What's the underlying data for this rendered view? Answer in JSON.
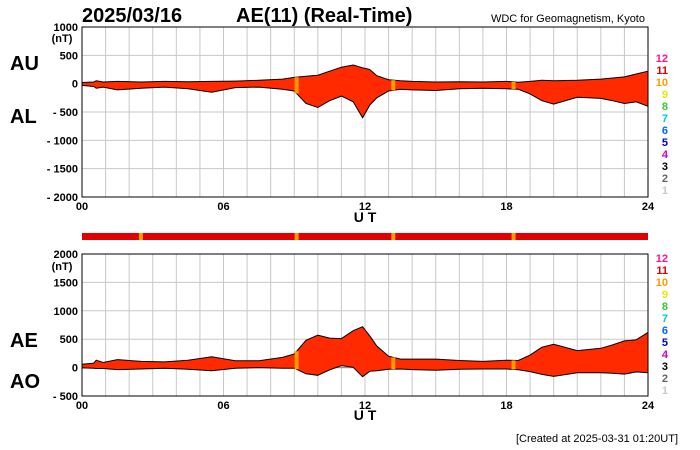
{
  "header": {
    "date": "2025/03/16",
    "title": "AE(11) (Real-Time)",
    "source": "WDC for Geomagnetism, Kyoto"
  },
  "footer": {
    "created": "[Created at 2025-03-31 01:20UT]"
  },
  "colors": {
    "fill": "#ff2a00",
    "highlight": "#ffb000",
    "grid": "#c8c8c8"
  },
  "station_scale": [
    {
      "label": "12",
      "color": "#ff1493"
    },
    {
      "label": "11",
      "color": "#e00000"
    },
    {
      "label": "10",
      "color": "#ff9900"
    },
    {
      "label": "9",
      "color": "#e6e600"
    },
    {
      "label": "8",
      "color": "#33cc33"
    },
    {
      "label": "7",
      "color": "#00cccc"
    },
    {
      "label": "6",
      "color": "#0066ff"
    },
    {
      "label": "5",
      "color": "#0000cc"
    },
    {
      "label": "4",
      "color": "#cc00cc"
    },
    {
      "label": "3",
      "color": "#000000"
    },
    {
      "label": "2",
      "color": "#666666"
    },
    {
      "label": "1",
      "color": "#c8c8c8"
    }
  ],
  "chart_data": [
    {
      "type": "area",
      "name": "AU/AL",
      "labels": {
        "upper": "AU",
        "lower": "AL"
      },
      "ylabel": "(nT)",
      "xlabel": "U T",
      "ylim": [
        -2000,
        1000
      ],
      "yticks": [
        "1000",
        "500",
        "0",
        "- 500",
        "- 1000",
        "- 1500",
        "- 2000"
      ],
      "xticks": [
        "00",
        "06",
        "12",
        "18",
        "24"
      ],
      "xlim": [
        0,
        24
      ],
      "grid": true,
      "upper": {
        "x": [
          0,
          0.5,
          0.6,
          0.9,
          1.5,
          2.5,
          3.5,
          4.5,
          5.5,
          6.5,
          7.5,
          8.5,
          9,
          9.5,
          10,
          10.5,
          11,
          11.5,
          11.9,
          12.2,
          12.5,
          13,
          13.5,
          14,
          15,
          16,
          17,
          18,
          18.5,
          19,
          19.5,
          20,
          21,
          22,
          22.5,
          23,
          23.5,
          24
        ],
        "values": [
          20,
          30,
          50,
          30,
          40,
          30,
          40,
          35,
          40,
          45,
          60,
          80,
          110,
          130,
          150,
          220,
          290,
          330,
          280,
          250,
          140,
          70,
          50,
          40,
          30,
          35,
          30,
          40,
          25,
          40,
          60,
          50,
          60,
          80,
          100,
          120,
          170,
          220
        ]
      },
      "lower": {
        "x": [
          0,
          0.5,
          0.6,
          0.9,
          1.5,
          2.5,
          3.5,
          4.5,
          5.5,
          6.5,
          7.5,
          8.5,
          9,
          9.5,
          10,
          10.5,
          11,
          11.5,
          11.9,
          12.2,
          12.5,
          13,
          13.5,
          14,
          15,
          16,
          17,
          18,
          18.5,
          19,
          19.5,
          20,
          21,
          22,
          22.5,
          23,
          23.5,
          24
        ],
        "values": [
          -30,
          -50,
          -80,
          -60,
          -110,
          -80,
          -60,
          -90,
          -150,
          -70,
          -60,
          -100,
          -130,
          -350,
          -420,
          -300,
          -220,
          -320,
          -600,
          -380,
          -250,
          -130,
          -100,
          -110,
          -120,
          -90,
          -80,
          -90,
          -100,
          -180,
          -300,
          -360,
          -240,
          -260,
          -300,
          -350,
          -320,
          -400
        ]
      },
      "highlights": [
        {
          "time": 9.1,
          "level": "10"
        },
        {
          "time": 13.2,
          "level": "10"
        },
        {
          "time": 18.3,
          "level": "10"
        }
      ]
    },
    {
      "type": "area",
      "name": "AE/AO",
      "labels": {
        "upper": "AE",
        "lower": "AO"
      },
      "ylabel": "(nT)",
      "xlabel": "U T",
      "ylim": [
        -500,
        2000
      ],
      "yticks": [
        "2000",
        "1500",
        "1000",
        "500",
        "0",
        "- 500"
      ],
      "xticks": [
        "00",
        "06",
        "12",
        "18",
        "24"
      ],
      "xlim": [
        0,
        24
      ],
      "grid": true,
      "upper": {
        "x": [
          0,
          0.5,
          0.6,
          0.9,
          1.5,
          2.5,
          3.5,
          4.5,
          5.5,
          6.5,
          7.5,
          8.5,
          9,
          9.5,
          10,
          10.5,
          11,
          11.5,
          11.9,
          12.2,
          12.5,
          13,
          13.5,
          14,
          15,
          16,
          17,
          18,
          18.5,
          19,
          19.5,
          20,
          21,
          22,
          22.5,
          23,
          23.5,
          24
        ],
        "values": [
          60,
          80,
          130,
          90,
          140,
          110,
          100,
          130,
          190,
          120,
          120,
          180,
          240,
          480,
          570,
          520,
          510,
          650,
          720,
          560,
          380,
          200,
          150,
          150,
          150,
          125,
          110,
          130,
          125,
          220,
          360,
          410,
          300,
          340,
          400,
          470,
          490,
          620
        ]
      },
      "lower": {
        "x": [
          0,
          0.5,
          0.6,
          0.9,
          1.5,
          2.5,
          3.5,
          4.5,
          5.5,
          6.5,
          7.5,
          8.5,
          9,
          9.5,
          10,
          10.5,
          11,
          11.5,
          11.9,
          12.2,
          12.5,
          13,
          13.5,
          14,
          15,
          16,
          17,
          18,
          18.5,
          19,
          19.5,
          20,
          21,
          22,
          22.5,
          23,
          23.5,
          24
        ],
        "values": [
          -5,
          -10,
          -15,
          -15,
          -35,
          -25,
          -10,
          -28,
          -55,
          -13,
          0,
          -10,
          -10,
          -110,
          -135,
          -40,
          35,
          5,
          -160,
          -65,
          -55,
          -30,
          -25,
          -35,
          -45,
          -28,
          -25,
          -25,
          -38,
          -70,
          -120,
          -155,
          -90,
          -90,
          -100,
          -115,
          -75,
          -90
        ]
      },
      "highlights": [
        {
          "time": 9.1,
          "level": "10"
        },
        {
          "time": 13.2,
          "level": "10"
        },
        {
          "time": 18.3,
          "level": "10"
        }
      ]
    }
  ],
  "station_bar": {
    "base_level": "11",
    "highlights": [
      {
        "time": 2.5,
        "level": "10"
      },
      {
        "time": 9.1,
        "level": "10"
      },
      {
        "time": 13.2,
        "level": "10"
      },
      {
        "time": 18.3,
        "level": "10"
      }
    ]
  }
}
